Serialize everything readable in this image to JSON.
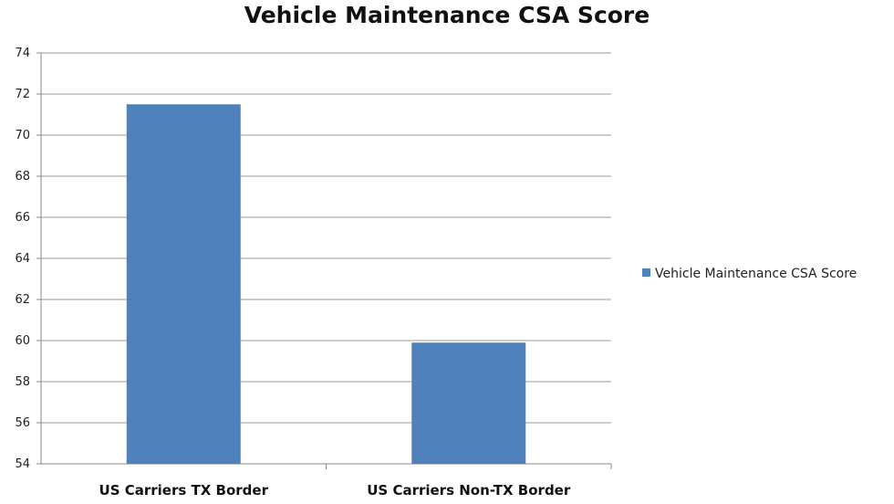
{
  "chart_data": {
    "type": "bar",
    "title": "Vehicle Maintenance CSA Score",
    "categories": [
      "US Carriers TX Border",
      "US Carriers Non-TX Border"
    ],
    "series": [
      {
        "name": "Vehicle Maintenance CSA Score",
        "values": [
          71.5,
          59.9
        ],
        "color": "#4f81bd"
      }
    ],
    "ylim": [
      54,
      74
    ],
    "yticks": [
      54,
      56,
      58,
      60,
      62,
      64,
      66,
      68,
      70,
      72,
      74
    ],
    "grid": true,
    "legend_position": "right",
    "xlabel": "",
    "ylabel": ""
  }
}
